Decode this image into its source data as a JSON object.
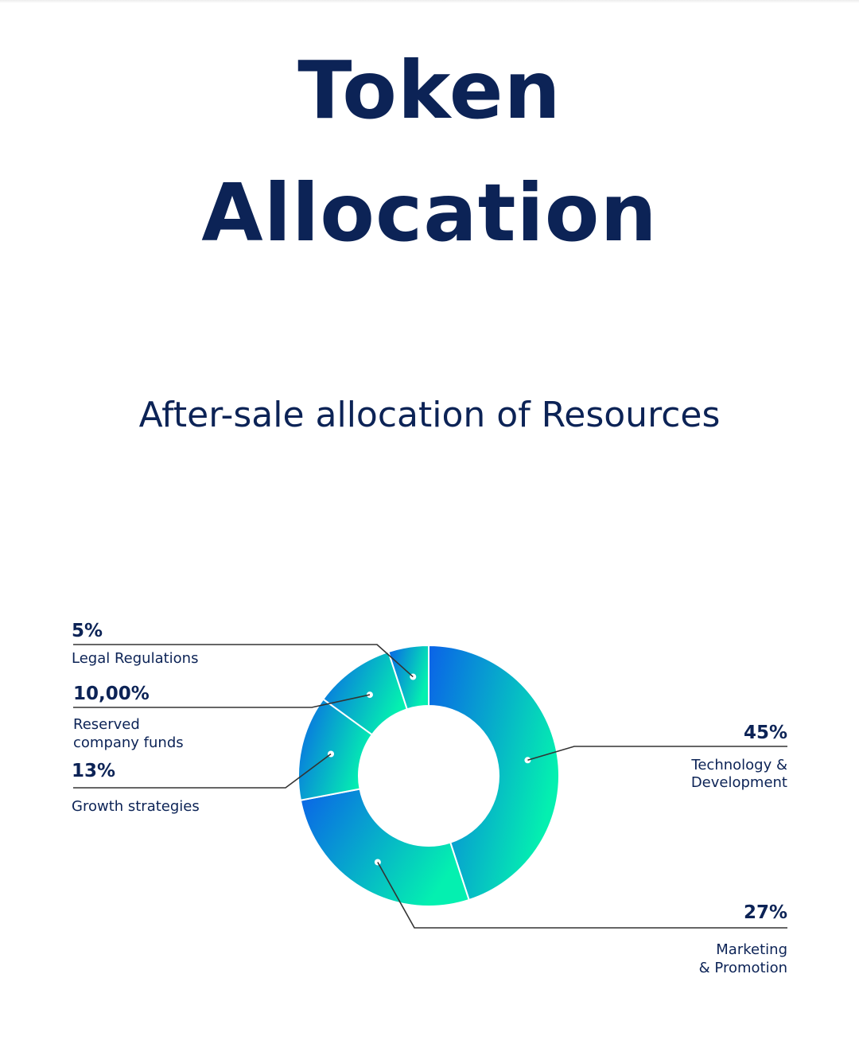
{
  "header": {
    "title_line1": "Token",
    "title_line2": "Allocation",
    "subtitle": "After-sale allocation of Resources"
  },
  "colors": {
    "text": "#0c2356",
    "gradient_start": "#0a62e8",
    "gradient_end": "#04f0b0",
    "leader_line": "#333333",
    "divider": "#ffffff"
  },
  "chart_data": {
    "type": "pie",
    "variant": "donut",
    "title": "",
    "slices": [
      {
        "percent_label": "45%",
        "value": 45,
        "label_lines": [
          "Technology &",
          "Development"
        ]
      },
      {
        "percent_label": "27%",
        "value": 27,
        "label_lines": [
          "Marketing",
          "& Promotion"
        ]
      },
      {
        "percent_label": "13%",
        "value": 13,
        "label_lines": [
          "Growth strategies"
        ]
      },
      {
        "percent_label": "10,00%",
        "value": 10,
        "label_lines": [
          "Reserved",
          "company funds"
        ]
      },
      {
        "percent_label": "5%",
        "value": 5,
        "label_lines": [
          "Legal Regulations"
        ]
      }
    ]
  }
}
